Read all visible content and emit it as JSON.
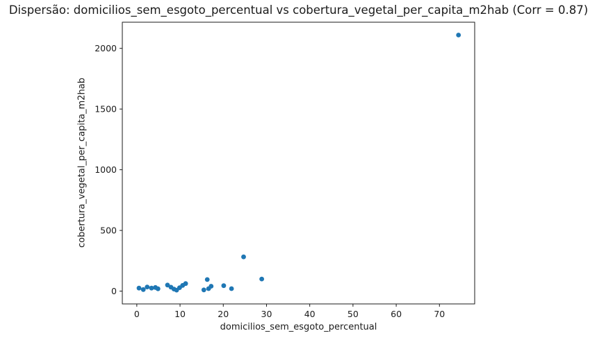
{
  "figure": {
    "background": "#ffffff"
  },
  "chart_data": {
    "type": "scatter",
    "title": "Dispersão: domicilios_sem_esgoto_percentual vs cobertura_vegetal_per_capita_m2hab (Corr = 0.87)",
    "xlabel": "domicilios_sem_esgoto_percentual",
    "ylabel": "cobertura_vegetal_per_capita_m2hab",
    "correlation": 0.87,
    "xlim": [
      -3.35,
      78.15
    ],
    "ylim": [
      -105.5,
      2215.5
    ],
    "xticks": [
      0,
      10,
      20,
      30,
      40,
      50,
      60,
      70
    ],
    "yticks": [
      0,
      500,
      1000,
      1500,
      2000
    ],
    "grid": false,
    "legend_position": "none",
    "marker_color": "#1f77b4",
    "marker_radius": 3.4,
    "spine_color": "#1a1a1a",
    "points": [
      [
        0.5,
        25
      ],
      [
        1.5,
        13
      ],
      [
        2.4,
        34
      ],
      [
        3.4,
        25
      ],
      [
        4.3,
        30
      ],
      [
        4.9,
        19
      ],
      [
        7.1,
        50
      ],
      [
        7.9,
        32
      ],
      [
        8.6,
        17
      ],
      [
        9.2,
        8
      ],
      [
        9.9,
        28
      ],
      [
        10.6,
        47
      ],
      [
        11.3,
        62
      ],
      [
        15.5,
        10
      ],
      [
        16.3,
        95
      ],
      [
        16.6,
        20
      ],
      [
        17.2,
        40
      ],
      [
        20.1,
        45
      ],
      [
        21.9,
        20
      ],
      [
        24.7,
        282
      ],
      [
        28.9,
        100
      ],
      [
        74.4,
        2110
      ]
    ]
  }
}
